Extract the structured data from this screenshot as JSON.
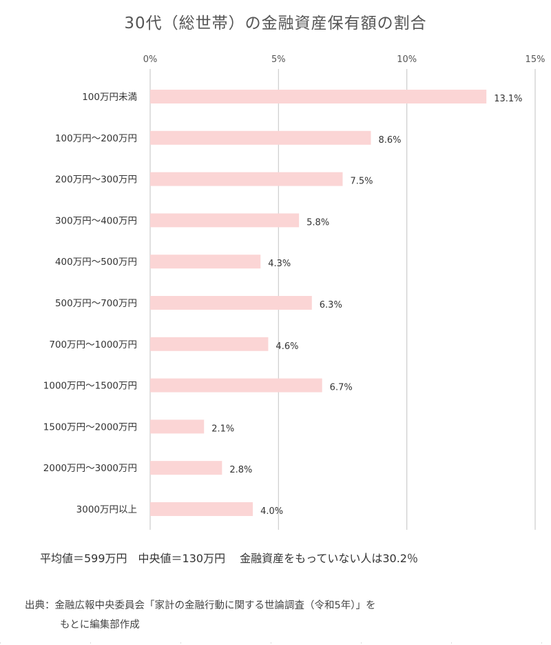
{
  "title": "30代（総世帯）の金融資産保有額の割合",
  "chart_data": {
    "type": "bar",
    "orientation": "horizontal",
    "title": "30代（総世帯）の金融資産保有額の割合",
    "categories": [
      "100万円未満",
      "100万円〜200万円",
      "200万円〜300万円",
      "300万円〜400万円",
      "400万円〜500万円",
      "500万円〜700万円",
      "700万円〜1000万円",
      "1000万円〜1500万円",
      "1500万円〜2000万円",
      "2000万円〜3000万円",
      "3000万円以上"
    ],
    "values": [
      13.1,
      8.6,
      7.5,
      5.8,
      4.3,
      6.3,
      4.6,
      6.7,
      2.1,
      2.8,
      4.0
    ],
    "data_labels": [
      "13.1%",
      "8.6%",
      "7.5%",
      "5.8%",
      "4.3%",
      "6.3%",
      "4.6%",
      "6.7%",
      "2.1%",
      "2.8%",
      "4.0%"
    ],
    "xlim": [
      0,
      15
    ],
    "x_ticks": [
      0,
      5,
      10,
      15
    ],
    "x_tick_labels": [
      "0%",
      "5%",
      "10%",
      "15%"
    ],
    "x_axis_position": "top",
    "grid": true,
    "bar_color": "#fbd5d5",
    "grid_color": "#cccccc"
  },
  "summary": "平均値＝599万円　中央値＝130万円　 金融資産をもっていない人は30.2％",
  "source": {
    "line1": "出典：金融広報中央委員会「家計の金融行動に関する世論調査（令和5年）」を",
    "line2": "もとに編集部作成"
  }
}
